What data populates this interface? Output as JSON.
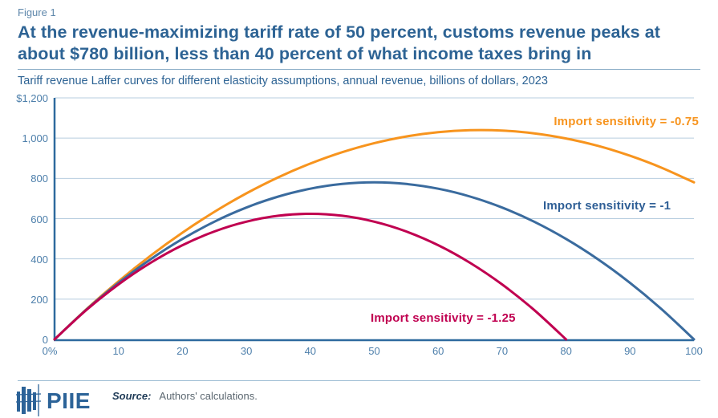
{
  "header": {
    "figure_label": "Figure 1",
    "title_line1": "At the revenue-maximizing tariff rate of 50 percent, customs revenue peaks at",
    "title_line2": "about $780 billion, less than 40 percent of what income taxes bring in",
    "subtitle": "Tariff revenue Laffer curves for different elasticity assumptions, annual revenue, billions of dollars, 2023"
  },
  "colors": {
    "title_blue": "#2d6394",
    "tick_blue": "#4d7fab",
    "axis_blue": "#2e6a9e",
    "grid_blue": "#b7cddf",
    "orange": "#f7941e",
    "curve_blue": "#3a6b9e",
    "magenta": "#c00050",
    "logo_blue": "#2c6398"
  },
  "chart_data": {
    "type": "line",
    "title": "Tariff revenue Laffer curves for different elasticity assumptions, annual revenue, billions of dollars, 2023",
    "xlabel": "",
    "ylabel": "",
    "xlim": [
      0,
      100
    ],
    "ylim": [
      0,
      1200
    ],
    "grid": "horizontal",
    "x_tick_values": [
      0,
      10,
      20,
      30,
      40,
      50,
      60,
      70,
      80,
      90,
      100
    ],
    "x_tick_labels": [
      "0%",
      "10",
      "20",
      "30",
      "40",
      "50",
      "60",
      "70",
      "80",
      "90",
      "100"
    ],
    "y_tick_values": [
      1200,
      1000,
      800,
      600,
      400,
      200,
      0
    ],
    "y_tick_labels": [
      "$1,200",
      "1,000",
      "800",
      "600",
      "400",
      "200",
      "0"
    ],
    "grid_values": [
      200,
      400,
      600,
      800,
      1000,
      1200
    ],
    "x": [
      0,
      5,
      10,
      15,
      20,
      25,
      30,
      35,
      40,
      45,
      50,
      55,
      60,
      65,
      70,
      75,
      80,
      85,
      90,
      95,
      100
    ],
    "series": [
      {
        "name": "Import sensitivity = -0.75",
        "elasticity": -0.75,
        "color": "#f7941e",
        "peak": {
          "x": 65,
          "y": 1039
        },
        "values": [
          0,
          150.2,
          288.6,
          415.4,
          530.4,
          633.8,
          725.4,
          805.4,
          873.6,
          930.2,
          975.0,
          1008.2,
          1029.6,
          1039.4,
          1037.4,
          1023.8,
          998.4,
          961.4,
          912.6,
          852.2,
          780.0
        ]
      },
      {
        "name": "Import sensitivity = -1",
        "elasticity": -1,
        "color": "#3a6b9e",
        "peak": {
          "x": 50,
          "y": 780
        },
        "values": [
          0,
          148.2,
          280.8,
          397.8,
          499.2,
          585.0,
          655.2,
          709.8,
          748.8,
          772.2,
          780.0,
          772.2,
          748.8,
          709.8,
          655.2,
          585.0,
          499.2,
          397.8,
          280.8,
          148.2,
          0
        ]
      },
      {
        "name": "Import sensitivity = -1.25",
        "elasticity": -1.25,
        "color": "#c00050",
        "peak": {
          "x": 40,
          "y": 624
        },
        "values": [
          0,
          146.3,
          273.0,
          380.3,
          468.0,
          536.3,
          585.0,
          614.3,
          624.0,
          614.3,
          585.0,
          536.3,
          468.0,
          380.3,
          273.0,
          146.3,
          0,
          null,
          null,
          null,
          null
        ]
      }
    ]
  },
  "footer": {
    "logo_text": "PIIE",
    "source_label": "Source:",
    "source_text": "Authors' calculations."
  }
}
